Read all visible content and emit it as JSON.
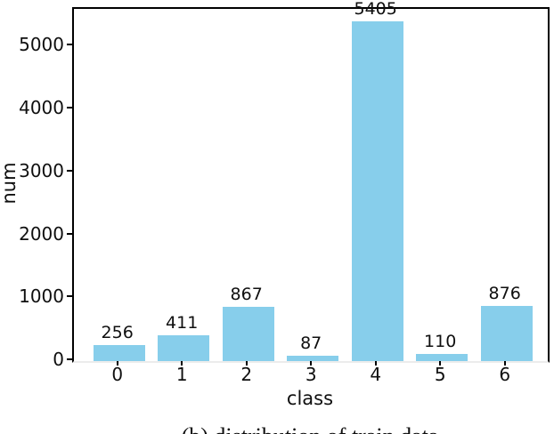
{
  "chart_data": {
    "type": "bar",
    "title": "",
    "xlabel": "class",
    "ylabel": "num",
    "categories": [
      "0",
      "1",
      "2",
      "3",
      "4",
      "5",
      "6"
    ],
    "values": [
      256,
      411,
      867,
      87,
      5405,
      110,
      876
    ],
    "bar_value_labels": [
      "256",
      "411",
      "867",
      "87",
      "5405",
      "110",
      "876"
    ],
    "yticks": [
      0,
      1000,
      2000,
      3000,
      4000,
      5000
    ],
    "ylim": [
      0,
      5600
    ],
    "grid": false,
    "legend_position": "none",
    "bar_color": "#87CEEB"
  },
  "caption": {
    "text": "(b)  distribution of train data"
  },
  "colors": {
    "bar": "#87CEEB",
    "spine": "#000000",
    "baseline": "#ececec",
    "text": "#0f0f0f",
    "background": "#ffffff"
  }
}
